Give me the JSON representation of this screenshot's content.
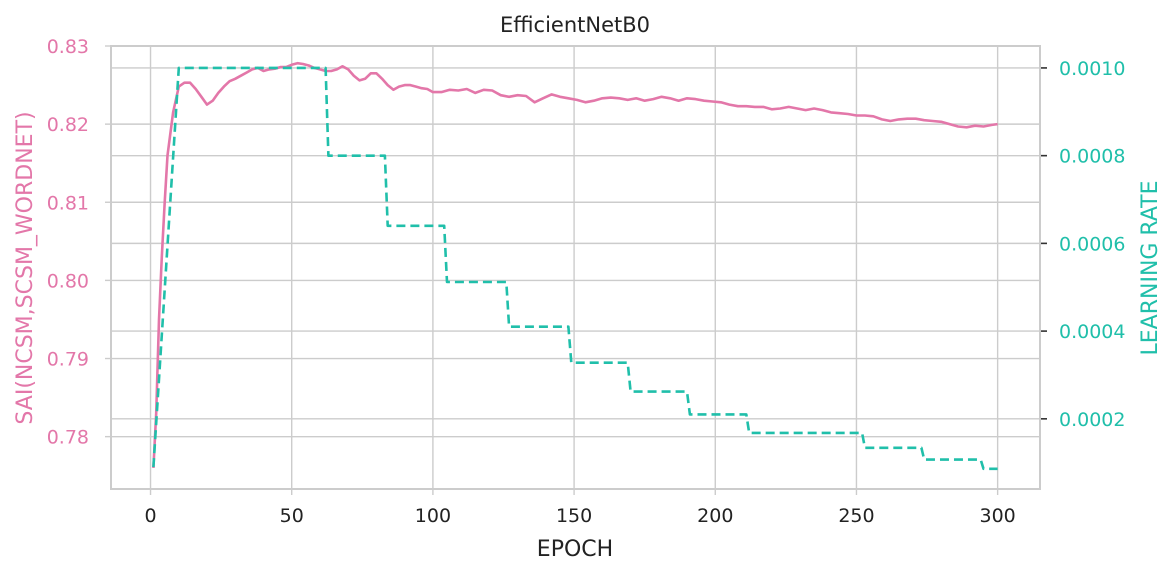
{
  "chart_data": {
    "type": "line",
    "title": "EfficientNetB0",
    "xlabel": "EPOCH",
    "ylabel_left": "SAI(NCSM,SCSM_WORDNET)",
    "ylabel_right": "LEARNING RATE",
    "xlim": [
      -14,
      315
    ],
    "ylim_left": [
      0.7733,
      0.83
    ],
    "ylim_right": [
      4e-05,
      0.00105
    ],
    "xticks": [
      0,
      50,
      100,
      150,
      200,
      250,
      300
    ],
    "xtick_labels": [
      "0",
      "50",
      "100",
      "150",
      "200",
      "250",
      "300"
    ],
    "yticks_left": [
      0.78,
      0.79,
      0.8,
      0.81,
      0.82,
      0.83
    ],
    "ytick_labels_left": [
      "0.78",
      "0.79",
      "0.80",
      "0.81",
      "0.82",
      "0.83"
    ],
    "yticks_right": [
      0.0002,
      0.0004,
      0.0006,
      0.0008,
      0.001
    ],
    "ytick_labels_right": [
      "0.0002",
      "0.0004",
      "0.0006",
      "0.0008",
      "0.0010"
    ],
    "grid": true,
    "colors": {
      "sai": "#e377a9",
      "lr": "#20bfaa",
      "grid": "#cccccc",
      "axis": "#cccccc",
      "text": "#222222"
    },
    "series": [
      {
        "axis": "left",
        "style": "solid",
        "x": [
          1,
          2,
          3,
          4,
          5,
          6,
          8,
          10,
          12,
          14,
          16,
          18,
          20,
          22,
          24,
          26,
          28,
          30,
          32,
          34,
          36,
          38,
          40,
          42,
          44,
          46,
          48,
          50,
          52,
          54,
          56,
          58,
          60,
          62,
          64,
          66,
          68,
          70,
          72,
          74,
          76,
          78,
          80,
          82,
          84,
          86,
          88,
          90,
          92,
          94,
          96,
          98,
          100,
          103,
          106,
          109,
          112,
          115,
          118,
          121,
          124,
          127,
          130,
          133,
          136,
          139,
          142,
          145,
          148,
          151,
          154,
          157,
          160,
          163,
          166,
          169,
          172,
          175,
          178,
          181,
          184,
          187,
          190,
          193,
          196,
          199,
          202,
          205,
          208,
          211,
          214,
          217,
          220,
          223,
          226,
          229,
          232,
          235,
          238,
          241,
          244,
          247,
          250,
          253,
          256,
          259,
          262,
          265,
          268,
          271,
          274,
          277,
          280,
          283,
          286,
          289,
          292,
          295,
          298,
          300
        ],
        "values": [
          0.776,
          0.783,
          0.795,
          0.803,
          0.81,
          0.816,
          0.8215,
          0.8248,
          0.8253,
          0.8253,
          0.8245,
          0.8235,
          0.8225,
          0.823,
          0.824,
          0.8248,
          0.8255,
          0.8258,
          0.8262,
          0.8266,
          0.827,
          0.8272,
          0.8268,
          0.827,
          0.8271,
          0.8273,
          0.8273,
          0.8276,
          0.8278,
          0.8277,
          0.8275,
          0.8272,
          0.827,
          0.8268,
          0.8268,
          0.827,
          0.8274,
          0.827,
          0.8262,
          0.8256,
          0.8258,
          0.8265,
          0.8265,
          0.8258,
          0.825,
          0.8244,
          0.8248,
          0.825,
          0.825,
          0.8248,
          0.8246,
          0.8245,
          0.8241,
          0.8241,
          0.8244,
          0.8243,
          0.8245,
          0.824,
          0.8244,
          0.8243,
          0.8237,
          0.8235,
          0.8237,
          0.8236,
          0.8228,
          0.8233,
          0.8238,
          0.8235,
          0.8233,
          0.8231,
          0.8228,
          0.823,
          0.8233,
          0.8234,
          0.8233,
          0.8231,
          0.8233,
          0.823,
          0.8232,
          0.8235,
          0.8233,
          0.823,
          0.8233,
          0.8232,
          0.823,
          0.8229,
          0.8228,
          0.8225,
          0.8223,
          0.8223,
          0.8222,
          0.8222,
          0.8219,
          0.822,
          0.8222,
          0.822,
          0.8218,
          0.822,
          0.8218,
          0.8215,
          0.8214,
          0.8213,
          0.8211,
          0.8211,
          0.821,
          0.8206,
          0.8204,
          0.8206,
          0.8207,
          0.8207,
          0.8205,
          0.8204,
          0.8203,
          0.82,
          0.8197,
          0.8196,
          0.8198,
          0.8197,
          0.8199,
          0.82
        ]
      },
      {
        "axis": "right",
        "style": "dashed",
        "x": [
          1,
          10,
          10,
          62,
          63,
          63,
          83,
          84,
          84,
          104,
          105,
          105,
          126,
          127,
          127,
          148,
          149,
          149,
          169,
          170,
          170,
          190,
          191,
          191,
          211,
          212,
          212,
          252,
          253,
          253,
          273,
          274,
          274,
          294,
          295,
          295,
          300
        ],
        "values": [
          9e-05,
          0.001,
          0.001,
          0.001,
          0.0008,
          0.0008,
          0.0008,
          0.00064,
          0.00064,
          0.00064,
          0.000512,
          0.000512,
          0.000512,
          0.00041,
          0.00041,
          0.00041,
          0.000328,
          0.000328,
          0.000328,
          0.000262,
          0.000262,
          0.000262,
          0.00021,
          0.00021,
          0.00021,
          0.000168,
          0.000168,
          0.000168,
          0.000134,
          0.000134,
          0.000134,
          0.000107,
          0.000107,
          0.000107,
          8.6e-05,
          8.6e-05,
          8.6e-05
        ]
      }
    ]
  }
}
